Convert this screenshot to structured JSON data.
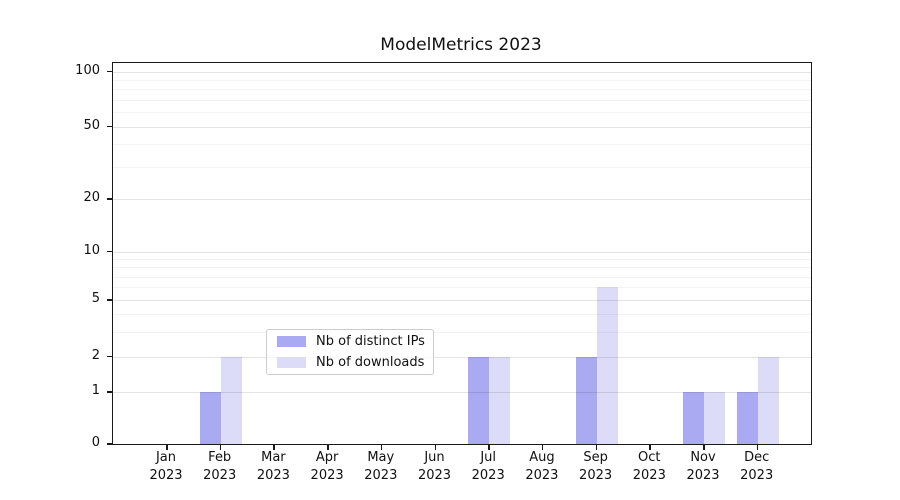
{
  "chart_data": {
    "type": "bar",
    "title": "ModelMetrics 2023",
    "categories": [
      "Jan",
      "Feb",
      "Mar",
      "Apr",
      "May",
      "Jun",
      "Jul",
      "Aug",
      "Sep",
      "Oct",
      "Nov",
      "Dec"
    ],
    "category_year": "2023",
    "series": [
      {
        "name": "Nb of distinct IPs",
        "color": "#aaaaf2",
        "values": [
          0,
          1,
          0,
          0,
          0,
          0,
          2,
          0,
          2,
          0,
          1,
          1
        ]
      },
      {
        "name": "Nb of downloads",
        "color": "#dcdcf8",
        "values": [
          0,
          2,
          0,
          0,
          0,
          0,
          2,
          0,
          6,
          0,
          1,
          2
        ]
      }
    ],
    "xlabel": "",
    "ylabel": "",
    "yscale": "symlog",
    "yticks": [
      0,
      1,
      2,
      5,
      10,
      20,
      50,
      100
    ],
    "yticks_minor": [
      3,
      4,
      6,
      7,
      8,
      9,
      30,
      40,
      60,
      70,
      80,
      90
    ],
    "ylim": [
      0,
      110
    ],
    "grid": "horizontal",
    "legend_position": "lower center inside plot"
  }
}
